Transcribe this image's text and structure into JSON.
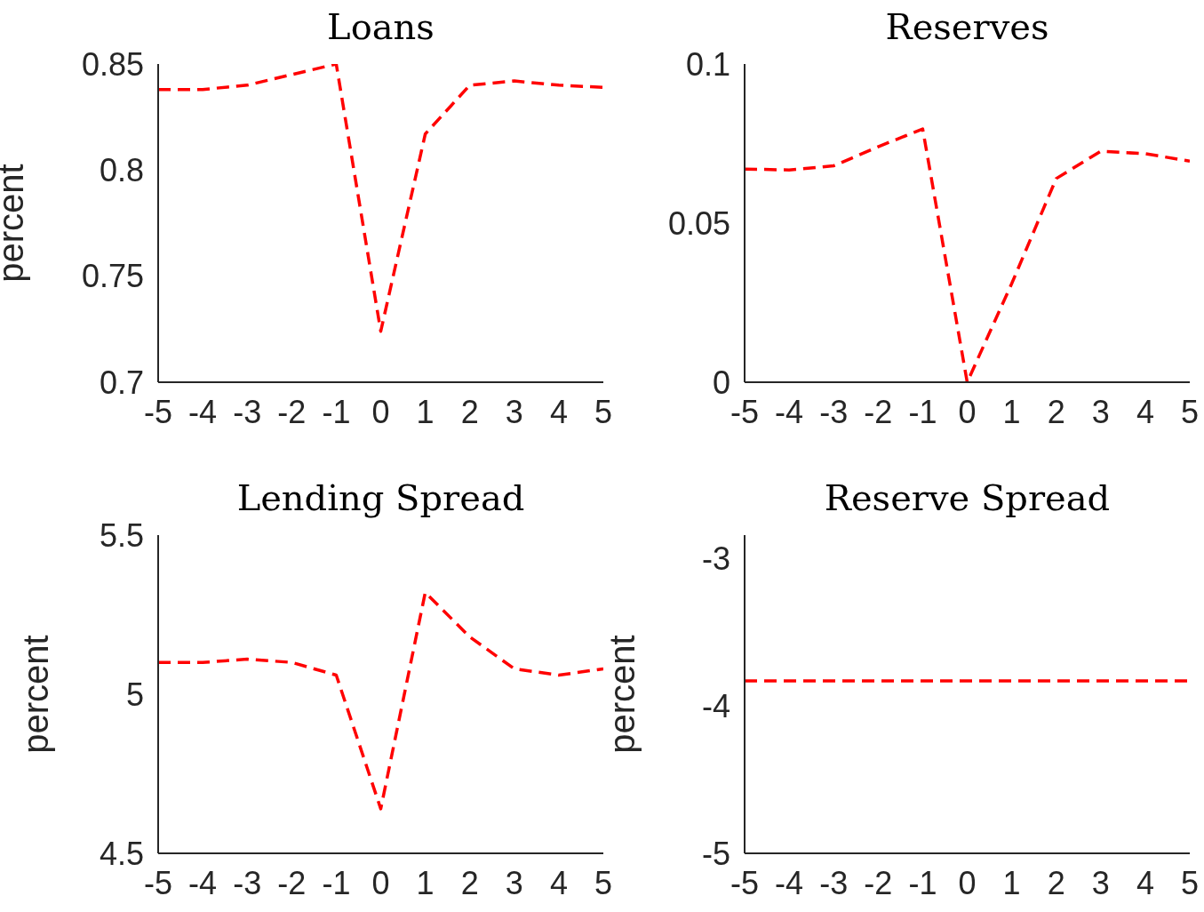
{
  "chart_data": [
    {
      "type": "line",
      "title": "Loans",
      "ylabel": "percent",
      "x": [
        -5,
        -4,
        -3,
        -2,
        -1,
        0,
        1,
        2,
        3,
        4,
        5
      ],
      "xlim": [
        -5,
        5
      ],
      "xticks": [
        -5,
        -4,
        -3,
        -2,
        -1,
        0,
        1,
        2,
        3,
        4,
        5
      ],
      "ylim": [
        0.7,
        0.85
      ],
      "yticks": [
        0.7,
        0.75,
        0.8,
        0.85
      ],
      "grid": false,
      "legend": false,
      "line_style": "dashed",
      "marker": "none",
      "series": [
        {
          "color": "#ff0000",
          "values": [
            0.838,
            0.838,
            0.84,
            0.845,
            0.85,
            0.724,
            0.817,
            0.84,
            0.842,
            0.84,
            0.839
          ]
        }
      ]
    },
    {
      "type": "line",
      "title": "Reserves",
      "x": [
        -5,
        -4,
        -3,
        -2,
        -1,
        0,
        1,
        2,
        3,
        4,
        5
      ],
      "xlim": [
        -5,
        5
      ],
      "xticks": [
        -5,
        -4,
        -3,
        -2,
        -1,
        0,
        1,
        2,
        3,
        4,
        5
      ],
      "ylim": [
        0,
        0.1
      ],
      "yticks": [
        0,
        0.05,
        0.1
      ],
      "grid": false,
      "legend": false,
      "line_style": "dashed",
      "marker": "none",
      "series": [
        {
          "color": "#ff0000",
          "values": [
            0.067,
            0.0667,
            0.068,
            0.074,
            0.0796,
            0,
            0.031,
            0.064,
            0.0726,
            0.0718,
            0.0695
          ]
        }
      ]
    },
    {
      "type": "line",
      "title": "Lending Spread",
      "ylabel": "percent",
      "x": [
        -5,
        -4,
        -3,
        -2,
        -1,
        0,
        1,
        2,
        3,
        4,
        5
      ],
      "xlim": [
        -5,
        5
      ],
      "xticks": [
        -5,
        -4,
        -3,
        -2,
        -1,
        0,
        1,
        2,
        3,
        4,
        5
      ],
      "ylim": [
        4.5,
        5.5
      ],
      "yticks": [
        4.5,
        5,
        5.5
      ],
      "grid": false,
      "legend": false,
      "line_style": "dashed",
      "marker": "none",
      "series": [
        {
          "color": "#ff0000",
          "values": [
            5.1,
            5.1,
            5.11,
            5.1,
            5.06,
            4.64,
            5.32,
            5.18,
            5.08,
            5.06,
            5.08
          ]
        }
      ]
    },
    {
      "type": "line",
      "title": "Reserve Spread",
      "ylabel": "percent",
      "x": [
        -5,
        -4,
        -3,
        -2,
        -1,
        0,
        1,
        2,
        3,
        4,
        5
      ],
      "xlim": [
        -5,
        5
      ],
      "xticks": [
        -5,
        -4,
        -3,
        -2,
        -1,
        0,
        1,
        2,
        3,
        4,
        5
      ],
      "ylim": [
        -5,
        -2.84
      ],
      "yticks": [
        -5,
        -4,
        -3
      ],
      "grid": false,
      "legend": false,
      "line_style": "dashed",
      "marker": "none",
      "series": [
        {
          "color": "#ff0000",
          "values": [
            -3.83,
            -3.83,
            -3.83,
            -3.83,
            -3.83,
            -3.83,
            -3.83,
            -3.83,
            -3.83,
            -3.83,
            -3.83
          ]
        }
      ]
    }
  ]
}
